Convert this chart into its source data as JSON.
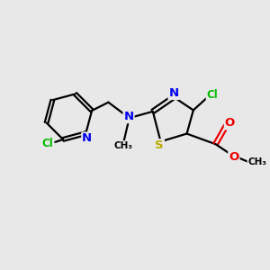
{
  "background_color": "#e8e8e8",
  "atom_colors": {
    "N": "#0000ee",
    "S": "#bbaa00",
    "O": "#ee0000",
    "Cl": "#00bb00"
  },
  "bond_color": "#000000",
  "bond_width": 1.6,
  "font_size_atom": 8.5
}
